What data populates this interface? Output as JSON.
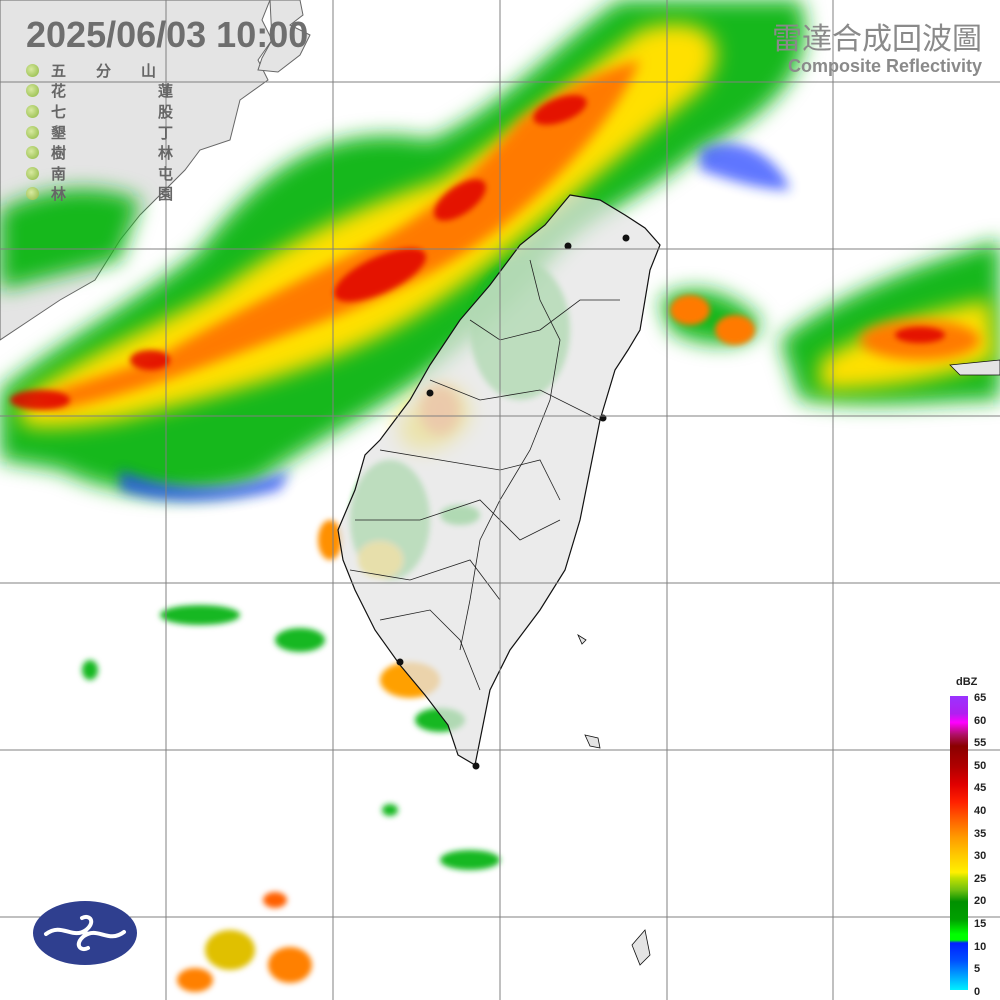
{
  "header": {
    "timestamp": "2025/06/03  10:00",
    "product_title_zh": "雷達合成回波圖",
    "product_title_en": "Composite Reflectivity"
  },
  "stations": [
    {
      "name": "五分山"
    },
    {
      "name": "花蓮"
    },
    {
      "name": "七股"
    },
    {
      "name": "墾丁"
    },
    {
      "name": "樹林"
    },
    {
      "name": "南屯"
    },
    {
      "name": "林園"
    }
  ],
  "legend": {
    "unit": "dBZ",
    "ticks": [
      "65",
      "60",
      "55",
      "50",
      "45",
      "40",
      "35",
      "30",
      "25",
      "20",
      "15",
      "10",
      "5",
      "0"
    ]
  },
  "colors": {
    "land": "#e4e4e4",
    "sea": "#ffffff",
    "grid": "#808080",
    "text": "#6e6e6e",
    "logo": "#2f3f8f"
  },
  "logo": {
    "name": "cwa-logo-icon"
  }
}
